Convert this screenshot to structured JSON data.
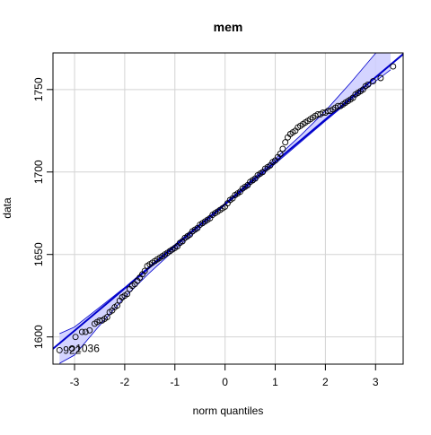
{
  "chart_data": {
    "type": "scatter",
    "title": "mem",
    "xlabel": "norm quantiles",
    "ylabel": "data",
    "xlim": [
      -3.43,
      3.55
    ],
    "ylim": [
      1583.5,
      1772.2
    ],
    "x_ticks": [
      -3,
      -2,
      -1,
      0,
      1,
      2,
      3
    ],
    "y_ticks": [
      1600,
      1650,
      1700,
      1750
    ],
    "grid": true,
    "colors": {
      "points": "#000000",
      "line": "#0000cc",
      "band_fill": "#ccccff",
      "band_edge": "#0000cc"
    },
    "reference_line": {
      "intercept": 1680.6,
      "slope": 25.6
    },
    "envelope": {
      "x": [
        -3.3,
        -3.0,
        -2.5,
        -2.0,
        -1.5,
        -1.0,
        -0.5,
        0.0,
        0.5,
        1.0,
        1.5,
        2.0,
        2.5,
        3.0,
        3.3
      ],
      "lower": [
        1584.0,
        1589.0,
        1607.0,
        1624.0,
        1639.0,
        1653.0,
        1666.0,
        1680.0,
        1692.0,
        1705.0,
        1718.0,
        1731.0,
        1743.5,
        1755.0,
        1762.0
      ],
      "upper": [
        1602.0,
        1606.0,
        1618.0,
        1630.0,
        1643.0,
        1656.0,
        1668.5,
        1681.0,
        1694.5,
        1708.0,
        1722.0,
        1737.0,
        1754.0,
        1772.0,
        1778.0
      ]
    },
    "labeled_points": [
      {
        "label": "922",
        "x": -3.3,
        "y": 1592.0
      },
      {
        "label": "1036",
        "x": -3.05,
        "y": 1593.0
      }
    ],
    "points": {
      "x": [
        -3.3,
        -3.05,
        -2.98,
        -2.85,
        -2.78,
        -2.7,
        -2.6,
        -2.55,
        -2.5,
        -2.45,
        -2.4,
        -2.35,
        -2.3,
        -2.25,
        -2.2,
        -2.15,
        -2.1,
        -2.05,
        -2.0,
        -1.95,
        -1.9,
        -1.85,
        -1.8,
        -1.75,
        -1.7,
        -1.65,
        -1.6,
        -1.55,
        -1.5,
        -1.45,
        -1.4,
        -1.35,
        -1.3,
        -1.25,
        -1.2,
        -1.15,
        -1.1,
        -1.05,
        -1.0,
        -0.95,
        -0.9,
        -0.85,
        -0.8,
        -0.75,
        -0.7,
        -0.65,
        -0.6,
        -0.55,
        -0.5,
        -0.45,
        -0.4,
        -0.35,
        -0.3,
        -0.25,
        -0.2,
        -0.15,
        -0.1,
        -0.05,
        0.0,
        0.05,
        0.1,
        0.15,
        0.2,
        0.25,
        0.3,
        0.35,
        0.4,
        0.45,
        0.5,
        0.55,
        0.6,
        0.65,
        0.7,
        0.75,
        0.8,
        0.85,
        0.9,
        0.95,
        1.0,
        1.05,
        1.1,
        1.15,
        1.2,
        1.25,
        1.3,
        1.35,
        1.4,
        1.45,
        1.5,
        1.55,
        1.6,
        1.65,
        1.7,
        1.75,
        1.8,
        1.85,
        1.9,
        1.95,
        2.0,
        2.05,
        2.1,
        2.15,
        2.2,
        2.25,
        2.3,
        2.35,
        2.4,
        2.45,
        2.5,
        2.55,
        2.6,
        2.65,
        2.7,
        2.75,
        2.8,
        2.85,
        2.95,
        3.1,
        3.35
      ],
      "y": [
        1592.0,
        1593.0,
        1600.0,
        1603.0,
        1603.0,
        1604.0,
        1608.0,
        1609.0,
        1610.0,
        1610.0,
        1611.0,
        1612.0,
        1615.0,
        1616.0,
        1618.0,
        1619.0,
        1622.0,
        1624.0,
        1625.0,
        1626.0,
        1629.0,
        1631.0,
        1632.0,
        1634.0,
        1636.0,
        1638.0,
        1640.0,
        1643.0,
        1644.0,
        1645.0,
        1646.0,
        1647.0,
        1648.0,
        1649.0,
        1650.0,
        1651.0,
        1652.0,
        1653.0,
        1654.0,
        1655.0,
        1657.0,
        1658.0,
        1660.0,
        1661.0,
        1662.0,
        1664.0,
        1665.0,
        1666.0,
        1668.0,
        1669.0,
        1670.0,
        1671.0,
        1672.0,
        1674.0,
        1675.0,
        1676.0,
        1677.0,
        1678.0,
        1679.0,
        1681.0,
        1683.0,
        1684.0,
        1686.0,
        1687.0,
        1688.0,
        1690.0,
        1691.0,
        1692.0,
        1694.0,
        1695.0,
        1696.0,
        1698.0,
        1699.0,
        1700.0,
        1702.0,
        1703.0,
        1704.0,
        1706.0,
        1707.0,
        1709.0,
        1711.0,
        1714.0,
        1718.0,
        1721.0,
        1723.0,
        1724.0,
        1725.0,
        1727.0,
        1728.0,
        1729.0,
        1730.0,
        1731.0,
        1732.0,
        1733.0,
        1734.0,
        1735.0,
        1735.0,
        1736.0,
        1736.0,
        1737.0,
        1737.0,
        1738.0,
        1739.0,
        1740.0,
        1740.0,
        1741.0,
        1742.0,
        1743.0,
        1744.0,
        1745.0,
        1747.0,
        1748.0,
        1749.0,
        1750.0,
        1752.0,
        1753.0,
        1755.0,
        1757.0,
        1764.0
      ]
    }
  }
}
